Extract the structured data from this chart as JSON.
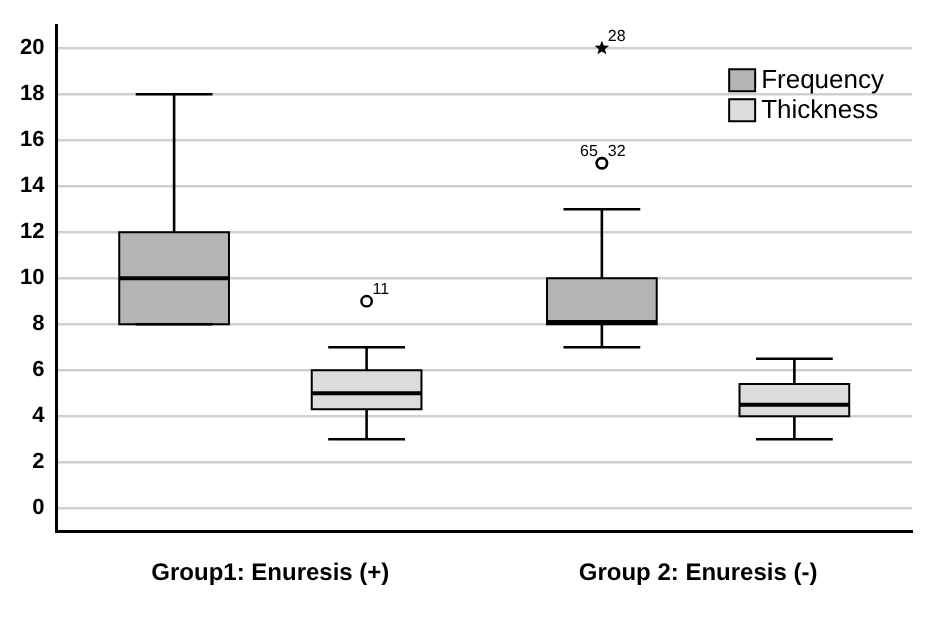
{
  "chart_data": {
    "type": "box",
    "categories": [
      "Group1: Enuresis (+)",
      "Group 2: Enuresis (-)"
    ],
    "series": [
      {
        "name": "Frequency",
        "color": "#b4b4b4",
        "boxes": [
          {
            "low": 8,
            "q1": 8,
            "median": 10,
            "q3": 12,
            "high": 18
          },
          {
            "low": 7,
            "q1": 8,
            "median": 8.1,
            "q3": 10,
            "high": 13,
            "outliers": [
              15,
              15,
              20
            ]
          }
        ]
      },
      {
        "name": "Thickness",
        "color": "#dcdcdc",
        "boxes": [
          {
            "low": 3,
            "q1": 4.3,
            "median": 5,
            "q3": 6,
            "high": 7,
            "outliers": [
              9
            ]
          },
          {
            "low": 3,
            "q1": 4,
            "median": 4.5,
            "q3": 5.4,
            "high": 6.5
          }
        ]
      }
    ],
    "annotations": [
      "65",
      "32",
      "28",
      "11"
    ],
    "ylim": [
      -1,
      21
    ],
    "yticks": [
      0,
      2,
      4,
      6,
      8,
      10,
      12,
      14,
      16,
      18,
      20
    ],
    "grid": "y",
    "legend": "top right"
  }
}
